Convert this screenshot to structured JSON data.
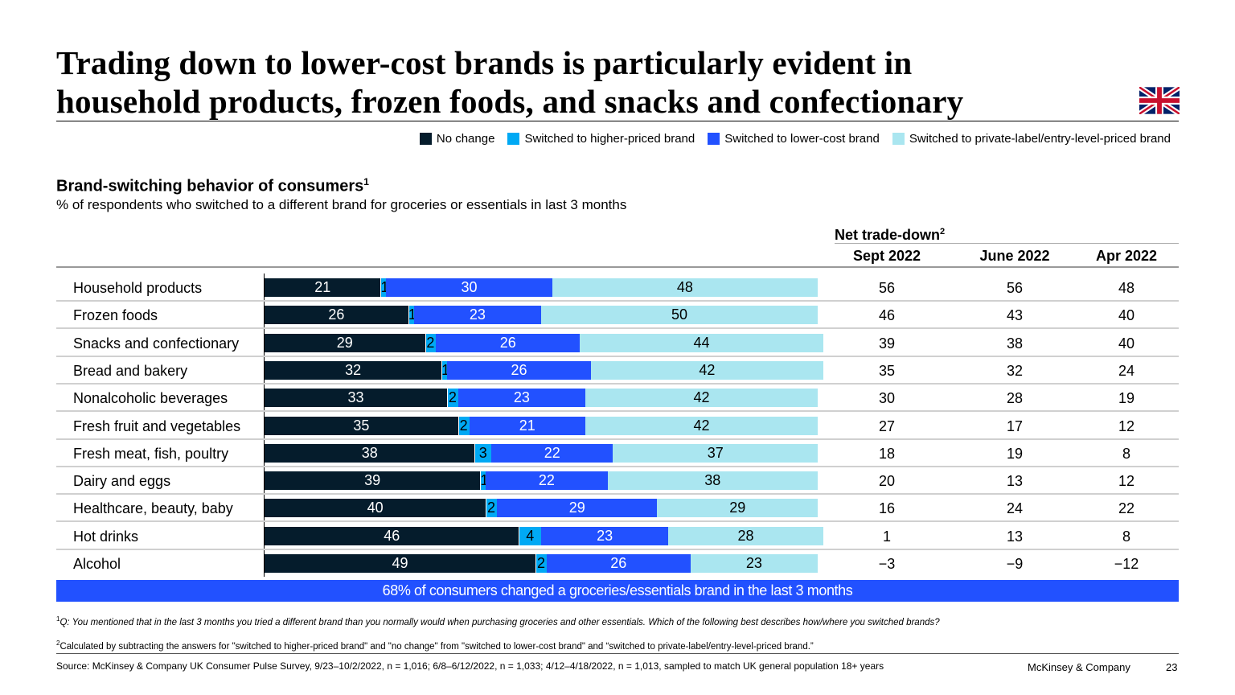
{
  "title_lines": [
    "Trading down to lower-cost brands is particularly evident in",
    "household products, frozen foods, and snacks and confectionary"
  ],
  "flag_icon": "uk-flag-icon",
  "colors": {
    "no_change": "#051c2c",
    "higher": "#00a9f4",
    "lower": "#2251ff",
    "private": "#aae6f0"
  },
  "chart_data": {
    "type": "bar",
    "orientation": "horizontal-stacked-100",
    "title": "Brand-switching behavior of consumers",
    "title_sup": "1",
    "subtitle": "% of respondents who switched to a different brand for groceries or essentials in last 3 months",
    "categories": [
      "Household products",
      "Frozen foods",
      "Snacks and confectionary",
      "Bread and bakery",
      "Nonalcoholic beverages",
      "Fresh fruit and vegetables",
      "Fresh meat, fish, poultry",
      "Dairy and eggs",
      "Healthcare, beauty, baby",
      "Hot drinks",
      "Alcohol"
    ],
    "series": [
      {
        "name": "No change",
        "values": [
          21,
          26,
          29,
          32,
          33,
          35,
          38,
          39,
          40,
          46,
          49
        ]
      },
      {
        "name": "Switched to higher-priced brand",
        "values": [
          1,
          1,
          2,
          1,
          2,
          2,
          3,
          1,
          2,
          4,
          2
        ]
      },
      {
        "name": "Switched to lower-cost brand",
        "values": [
          30,
          23,
          26,
          26,
          23,
          21,
          22,
          22,
          29,
          23,
          26
        ]
      },
      {
        "name": "Switched to private-label/entry-level-priced brand",
        "values": [
          48,
          50,
          44,
          42,
          42,
          42,
          37,
          38,
          29,
          28,
          23
        ]
      }
    ],
    "xlim": [
      0,
      100
    ],
    "legend_placement": "top-right",
    "table": {
      "header": "Net trade-down",
      "header_sup": "2",
      "columns": [
        "Sept 2022",
        "June 2022",
        "Apr 2022"
      ],
      "rows": [
        [
          "56",
          "56",
          "48"
        ],
        [
          "46",
          "43",
          "40"
        ],
        [
          "39",
          "38",
          "40"
        ],
        [
          "35",
          "32",
          "24"
        ],
        [
          "30",
          "28",
          "19"
        ],
        [
          "27",
          "17",
          "12"
        ],
        [
          "18",
          "19",
          "8"
        ],
        [
          "20",
          "13",
          "12"
        ],
        [
          "16",
          "24",
          "22"
        ],
        [
          "1",
          "13",
          "8"
        ],
        [
          "−3",
          "−9",
          "−12"
        ]
      ]
    }
  },
  "banner": "68% of consumers changed a groceries/essentials brand in the last 3 months",
  "footnotes": {
    "fn1_sup": "1",
    "fn1": "Q: You mentioned that in the last 3 months you tried a different brand than you normally would when purchasing groceries and other essentials. Which of the following best describes how/where you switched brands?",
    "fn2_sup": "2",
    "fn2": "Calculated by subtracting the answers for \"switched to higher-priced brand\" and \"no change\" from \"switched to lower-cost brand\" and “switched to private-label/entry-level-priced brand.”"
  },
  "source": "Source: McKinsey & Company UK Consumer Pulse Survey, 9/23–10/2/2022, n = 1,016; 6/8–6/12/2022, n = 1,033; 4/12–4/18/2022, n = 1,013, sampled to match UK general population 18+ years",
  "brand": "McKinsey & Company",
  "page_number": "23"
}
